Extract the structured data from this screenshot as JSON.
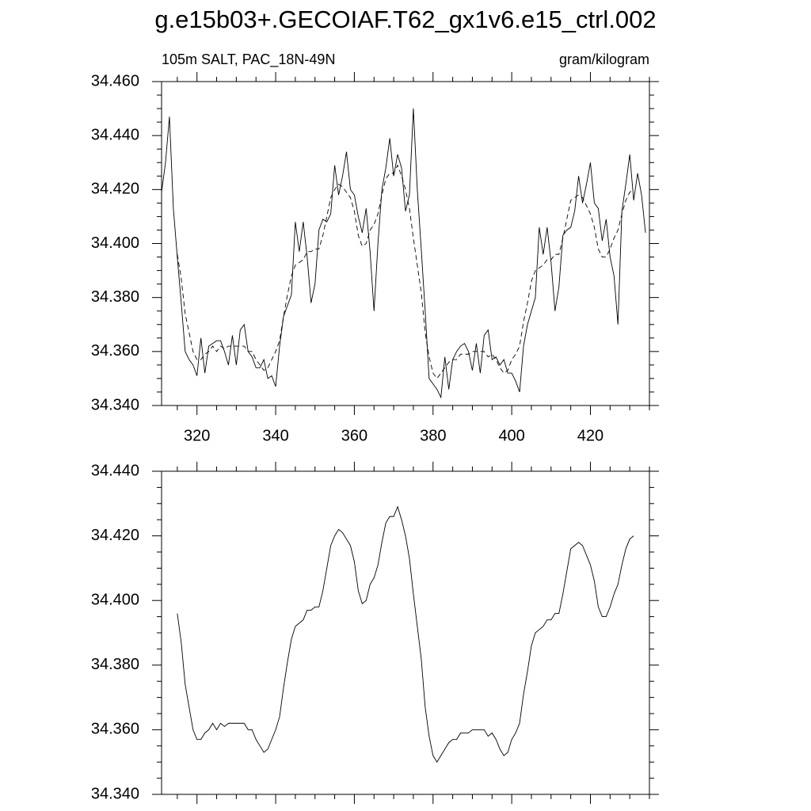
{
  "chart_data": [
    {
      "type": "line",
      "title": "g.e15b03+.GECOIAF.T62_gx1v6.e15_ctrl.002",
      "left_subtitle": "105m SALT, PAC_18N-49N",
      "right_subtitle": "gram/kilogram",
      "xlim": [
        311,
        435
      ],
      "ylim": [
        34.34,
        34.46
      ],
      "xticks": [
        320,
        340,
        360,
        380,
        400,
        420
      ],
      "yticks": [
        {
          "value": 34.34,
          "label": "34.340"
        },
        {
          "value": 34.36,
          "label": "34.360"
        },
        {
          "value": 34.38,
          "label": "34.380"
        },
        {
          "value": 34.4,
          "label": "34.400"
        },
        {
          "value": 34.42,
          "label": "34.420"
        },
        {
          "value": 34.44,
          "label": "34.440"
        },
        {
          "value": 34.46,
          "label": "34.460"
        }
      ],
      "x_tick_labels": true,
      "minor_ticks": 3,
      "series": [
        {
          "color": "#000000",
          "dashed": false,
          "x": [
            311,
            312,
            313,
            314,
            315,
            316,
            317,
            318,
            319,
            320,
            321,
            322,
            323,
            324,
            325,
            326,
            327,
            328,
            329,
            330,
            331,
            332,
            333,
            334,
            335,
            336,
            337,
            338,
            339,
            340,
            341,
            342,
            343,
            344,
            345,
            346,
            347,
            348,
            349,
            350,
            351,
            352,
            353,
            354,
            355,
            356,
            357,
            358,
            359,
            360,
            361,
            362,
            363,
            364,
            365,
            366,
            367,
            368,
            369,
            370,
            371,
            372,
            373,
            374,
            375,
            376,
            377,
            378,
            379,
            380,
            381,
            382,
            383,
            384,
            385,
            386,
            387,
            388,
            389,
            390,
            391,
            392,
            393,
            394,
            395,
            396,
            397,
            398,
            399,
            400,
            401,
            402,
            403,
            404,
            405,
            406,
            407,
            408,
            409,
            410,
            411,
            412,
            413,
            414,
            415,
            416,
            417,
            418,
            419,
            420,
            421,
            422,
            423,
            424,
            425,
            426,
            427,
            428,
            429,
            430,
            431,
            432,
            433,
            434
          ],
          "values": [
            34.419,
            34.43,
            34.447,
            34.413,
            34.395,
            34.378,
            34.36,
            34.357,
            34.355,
            34.351,
            34.365,
            34.352,
            34.362,
            34.363,
            34.364,
            34.364,
            34.36,
            34.355,
            34.366,
            34.355,
            34.368,
            34.37,
            34.36,
            34.358,
            34.354,
            34.354,
            34.357,
            34.35,
            34.351,
            34.347,
            34.362,
            34.373,
            34.377,
            34.381,
            34.408,
            34.397,
            34.408,
            34.395,
            34.378,
            34.385,
            34.405,
            34.409,
            34.408,
            34.411,
            34.429,
            34.418,
            34.425,
            34.434,
            34.42,
            34.418,
            34.41,
            34.404,
            34.413,
            34.397,
            34.375,
            34.4,
            34.42,
            34.428,
            34.439,
            34.425,
            34.433,
            34.428,
            34.412,
            34.418,
            34.45,
            34.42,
            34.398,
            34.375,
            34.35,
            34.348,
            34.346,
            34.343,
            34.358,
            34.346,
            34.357,
            34.36,
            34.362,
            34.363,
            34.36,
            34.353,
            34.363,
            34.352,
            34.366,
            34.368,
            34.357,
            34.358,
            34.355,
            34.357,
            34.352,
            34.352,
            34.349,
            34.345,
            34.362,
            34.37,
            34.375,
            34.38,
            34.406,
            34.396,
            34.406,
            34.393,
            34.375,
            34.384,
            34.403,
            34.405,
            34.406,
            34.412,
            34.425,
            34.415,
            34.422,
            34.43,
            34.415,
            34.413,
            34.401,
            34.409,
            34.395,
            34.388,
            34.37,
            34.412,
            34.422,
            34.433,
            34.416,
            34.426,
            34.418,
            34.404
          ]
        },
        {
          "color": "#000000",
          "dashed": true,
          "x": [
            315,
            316,
            317,
            318,
            319,
            320,
            321,
            322,
            323,
            324,
            325,
            326,
            327,
            328,
            329,
            330,
            331,
            332,
            333,
            334,
            335,
            336,
            337,
            338,
            339,
            340,
            341,
            342,
            343,
            344,
            345,
            346,
            347,
            348,
            349,
            350,
            351,
            352,
            353,
            354,
            355,
            356,
            357,
            358,
            359,
            360,
            361,
            362,
            363,
            364,
            365,
            366,
            367,
            368,
            369,
            370,
            371,
            372,
            373,
            374,
            375,
            376,
            377,
            378,
            379,
            380,
            381,
            382,
            383,
            384,
            385,
            386,
            387,
            388,
            389,
            390,
            391,
            392,
            393,
            394,
            395,
            396,
            397,
            398,
            399,
            400,
            401,
            402,
            403,
            404,
            405,
            406,
            407,
            408,
            409,
            410,
            411,
            412,
            413,
            414,
            415,
            416,
            417,
            418,
            419,
            420,
            421,
            422,
            423,
            424,
            425,
            426,
            427,
            428,
            429,
            430,
            431
          ],
          "values": [
            34.396,
            34.387,
            34.374,
            34.367,
            34.36,
            34.357,
            34.357,
            34.359,
            34.36,
            34.362,
            34.36,
            34.362,
            34.361,
            34.362,
            34.362,
            34.362,
            34.362,
            34.362,
            34.36,
            34.36,
            34.357,
            34.355,
            34.353,
            34.354,
            34.357,
            34.36,
            34.364,
            34.373,
            34.381,
            34.388,
            34.392,
            34.393,
            34.394,
            34.397,
            34.397,
            34.398,
            34.398,
            34.403,
            34.41,
            34.417,
            34.42,
            34.422,
            34.421,
            34.419,
            34.417,
            34.412,
            34.403,
            34.399,
            34.4,
            34.405,
            34.407,
            34.411,
            34.418,
            34.424,
            34.426,
            34.426,
            34.429,
            34.425,
            34.42,
            34.413,
            34.402,
            34.392,
            34.382,
            34.367,
            34.358,
            34.352,
            34.35,
            34.352,
            34.354,
            34.356,
            34.357,
            34.357,
            34.359,
            34.359,
            34.359,
            34.36,
            34.36,
            34.36,
            34.36,
            34.358,
            34.359,
            34.357,
            34.354,
            34.352,
            34.353,
            34.357,
            34.359,
            34.362,
            34.371,
            34.378,
            34.386,
            34.39,
            34.391,
            34.392,
            34.394,
            34.394,
            34.396,
            34.396,
            34.402,
            34.409,
            34.416,
            34.417,
            34.418,
            34.417,
            34.414,
            34.411,
            34.406,
            34.398,
            34.395,
            34.395,
            34.398,
            34.402,
            34.405,
            34.411,
            34.416,
            34.419,
            34.42
          ]
        }
      ]
    },
    {
      "type": "line",
      "xlim": [
        311,
        435
      ],
      "ylim": [
        34.34,
        34.44
      ],
      "xticks": [
        320,
        340,
        360,
        380,
        400,
        420
      ],
      "yticks": [
        {
          "value": 34.34,
          "label": "34.340"
        },
        {
          "value": 34.36,
          "label": "34.360"
        },
        {
          "value": 34.38,
          "label": "34.380"
        },
        {
          "value": 34.4,
          "label": "34.400"
        },
        {
          "value": 34.42,
          "label": "34.420"
        },
        {
          "value": 34.44,
          "label": "34.440"
        }
      ],
      "x_tick_labels": false,
      "minor_ticks": 3,
      "series": [
        {
          "color": "#000000",
          "dashed": false,
          "x": [
            315,
            316,
            317,
            318,
            319,
            320,
            321,
            322,
            323,
            324,
            325,
            326,
            327,
            328,
            329,
            330,
            331,
            332,
            333,
            334,
            335,
            336,
            337,
            338,
            339,
            340,
            341,
            342,
            343,
            344,
            345,
            346,
            347,
            348,
            349,
            350,
            351,
            352,
            353,
            354,
            355,
            356,
            357,
            358,
            359,
            360,
            361,
            362,
            363,
            364,
            365,
            366,
            367,
            368,
            369,
            370,
            371,
            372,
            373,
            374,
            375,
            376,
            377,
            378,
            379,
            380,
            381,
            382,
            383,
            384,
            385,
            386,
            387,
            388,
            389,
            390,
            391,
            392,
            393,
            394,
            395,
            396,
            397,
            398,
            399,
            400,
            401,
            402,
            403,
            404,
            405,
            406,
            407,
            408,
            409,
            410,
            411,
            412,
            413,
            414,
            415,
            416,
            417,
            418,
            419,
            420,
            421,
            422,
            423,
            424,
            425,
            426,
            427,
            428,
            429,
            430,
            431
          ],
          "values": [
            34.396,
            34.387,
            34.374,
            34.367,
            34.36,
            34.357,
            34.357,
            34.359,
            34.36,
            34.362,
            34.36,
            34.362,
            34.361,
            34.362,
            34.362,
            34.362,
            34.362,
            34.362,
            34.36,
            34.36,
            34.357,
            34.355,
            34.353,
            34.354,
            34.357,
            34.36,
            34.364,
            34.373,
            34.381,
            34.388,
            34.392,
            34.393,
            34.394,
            34.397,
            34.397,
            34.398,
            34.398,
            34.403,
            34.41,
            34.417,
            34.42,
            34.422,
            34.421,
            34.419,
            34.417,
            34.412,
            34.403,
            34.399,
            34.4,
            34.405,
            34.407,
            34.411,
            34.418,
            34.424,
            34.426,
            34.426,
            34.429,
            34.425,
            34.42,
            34.413,
            34.402,
            34.392,
            34.382,
            34.367,
            34.358,
            34.352,
            34.35,
            34.352,
            34.354,
            34.356,
            34.357,
            34.357,
            34.359,
            34.359,
            34.359,
            34.36,
            34.36,
            34.36,
            34.36,
            34.358,
            34.359,
            34.357,
            34.354,
            34.352,
            34.353,
            34.357,
            34.359,
            34.362,
            34.371,
            34.378,
            34.386,
            34.39,
            34.391,
            34.392,
            34.394,
            34.394,
            34.396,
            34.396,
            34.402,
            34.409,
            34.416,
            34.417,
            34.418,
            34.417,
            34.414,
            34.411,
            34.406,
            34.398,
            34.395,
            34.395,
            34.398,
            34.402,
            34.405,
            34.411,
            34.416,
            34.419,
            34.42
          ]
        }
      ]
    }
  ]
}
